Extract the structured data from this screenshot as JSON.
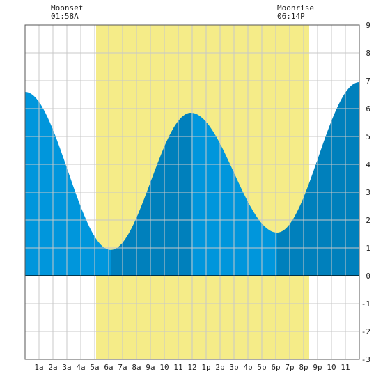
{
  "moon": {
    "moonset_label": "Moonset",
    "moonset_time": "01:58A",
    "moonrise_label": "Moonrise",
    "moonrise_time": "06:14P"
  },
  "colors": {
    "daylight": "#f5ec88",
    "tide_light": "#0096dc",
    "tide_dark": "#0080bc",
    "grid": "#c8c8c8",
    "frame": "#555555"
  },
  "chart_data": {
    "type": "area",
    "title": "",
    "xlabel": "",
    "ylabel": "",
    "xlim": [
      0,
      24
    ],
    "ylim": [
      -3,
      9
    ],
    "x_ticks": [
      {
        "x": 1,
        "label": "1a"
      },
      {
        "x": 2,
        "label": "2a"
      },
      {
        "x": 3,
        "label": "3a"
      },
      {
        "x": 4,
        "label": "4a"
      },
      {
        "x": 5,
        "label": "5a"
      },
      {
        "x": 6,
        "label": "6a"
      },
      {
        "x": 7,
        "label": "7a"
      },
      {
        "x": 8,
        "label": "8a"
      },
      {
        "x": 9,
        "label": "9a"
      },
      {
        "x": 10,
        "label": "10"
      },
      {
        "x": 11,
        "label": "11"
      },
      {
        "x": 12,
        "label": "12"
      },
      {
        "x": 13,
        "label": "1p"
      },
      {
        "x": 14,
        "label": "2p"
      },
      {
        "x": 15,
        "label": "3p"
      },
      {
        "x": 16,
        "label": "4p"
      },
      {
        "x": 17,
        "label": "5p"
      },
      {
        "x": 18,
        "label": "6p"
      },
      {
        "x": 19,
        "label": "7p"
      },
      {
        "x": 20,
        "label": "8p"
      },
      {
        "x": 21,
        "label": "9p"
      },
      {
        "x": 22,
        "label": "10"
      },
      {
        "x": 23,
        "label": "11"
      }
    ],
    "y_ticks": [
      9,
      8,
      7,
      6,
      5,
      4,
      3,
      2,
      1,
      0,
      -1,
      -2,
      -3
    ],
    "daylight_hours": [
      5.1,
      20.4
    ],
    "extrema": [
      {
        "x": 0.0,
        "y": 6.6
      },
      {
        "x": 6.15,
        "y": 0.93
      },
      {
        "x": 11.9,
        "y": 5.85
      },
      {
        "x": 18.1,
        "y": 1.55
      },
      {
        "x": 24.0,
        "y": 6.95
      }
    ],
    "shade_segments": [
      {
        "from": 0.0,
        "to": 6.15,
        "shade": "light"
      },
      {
        "from": 6.15,
        "to": 11.9,
        "shade": "dark"
      },
      {
        "from": 11.9,
        "to": 18.1,
        "shade": "light"
      },
      {
        "from": 18.1,
        "to": 24.0,
        "shade": "dark"
      }
    ]
  }
}
